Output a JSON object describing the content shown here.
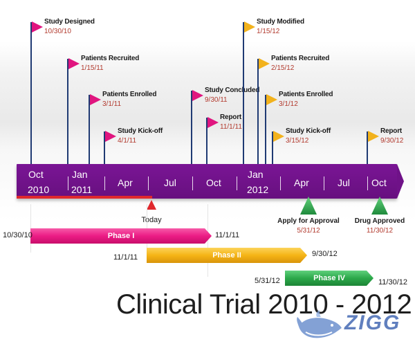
{
  "title": "Clinical Trial 2010 - 2012",
  "colors": {
    "band": "#6f1288",
    "flag_pink": "#e0157f",
    "flag_yellow": "#f2b21c",
    "pole": "#1f3a73",
    "date_text": "#b23a2e",
    "today": "#e0282d",
    "marker_green": "#2fa84f",
    "phase1": "#ec1c85",
    "phase2": "#f5b416",
    "phase4": "#2ca84a"
  },
  "axis_labels": [
    {
      "top": "Oct",
      "bottom": "2010"
    },
    {
      "top": "Jan",
      "bottom": "2011"
    },
    {
      "top": "Apr",
      "bottom": ""
    },
    {
      "top": "Jul",
      "bottom": ""
    },
    {
      "top": "Oct",
      "bottom": ""
    },
    {
      "top": "Jan",
      "bottom": "2012"
    },
    {
      "top": "Apr",
      "bottom": ""
    },
    {
      "top": "Jul",
      "bottom": ""
    },
    {
      "top": "Oct",
      "bottom": ""
    }
  ],
  "milestones": [
    {
      "title": "Study Designed",
      "date": "10/30/10",
      "color": "pink"
    },
    {
      "title": "Patients Recruited",
      "date": "1/15/11",
      "color": "pink"
    },
    {
      "title": "Patients Enrolled",
      "date": "3/1/11",
      "color": "pink"
    },
    {
      "title": "Study Kick-off",
      "date": "4/1/11",
      "color": "pink"
    },
    {
      "title": "Study Concluded",
      "date": "9/30/11",
      "color": "pink"
    },
    {
      "title": "Report",
      "date": "11/1/11",
      "color": "pink"
    },
    {
      "title": "Study Modified",
      "date": "1/15/12",
      "color": "yellow"
    },
    {
      "title": "Patients Recruited",
      "date": "2/15/12",
      "color": "yellow"
    },
    {
      "title": "Patients Enrolled",
      "date": "3/1/12",
      "color": "yellow"
    },
    {
      "title": "Study Kick-off",
      "date": "3/15/12",
      "color": "yellow"
    },
    {
      "title": "Report",
      "date": "9/30/12",
      "color": "yellow"
    }
  ],
  "today": {
    "label": "Today"
  },
  "markers": [
    {
      "title": "Apply for Approval",
      "date": "5/31/12"
    },
    {
      "title": "Drug Approved",
      "date": "11/30/12"
    }
  ],
  "phases": [
    {
      "label": "Phase I",
      "start": "10/30/10",
      "end": "11/1/11",
      "color": "#ec1c85"
    },
    {
      "label": "Phase II",
      "start": "11/1/11",
      "end": "9/30/12",
      "color": "#f5b416"
    },
    {
      "label": "Phase IV",
      "start": "5/31/12",
      "end": "11/30/12",
      "color": "#2ca84a"
    }
  ],
  "logo": {
    "text": "ZIGG"
  }
}
